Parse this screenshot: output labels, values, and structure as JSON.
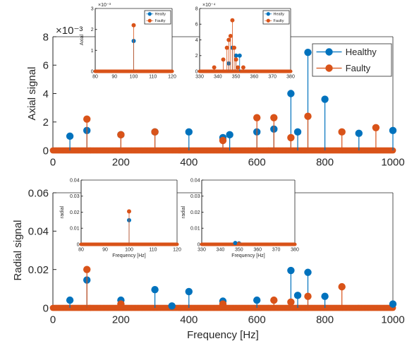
{
  "colors": {
    "healthy": "#0072BD",
    "faulty": "#D95319",
    "axis": "#262626"
  },
  "legend": {
    "entries": [
      {
        "name": "Healthy",
        "series": "healthy"
      },
      {
        "name": "Faulty",
        "series": "faulty"
      }
    ],
    "inset_entries": [
      {
        "name": "Healty",
        "series": "healthy"
      },
      {
        "name": "Faulty",
        "series": "faulty"
      }
    ]
  },
  "chart_data": [
    {
      "id": "axial-main",
      "type": "stem",
      "ylabel": "Axial signal",
      "xlabel": "",
      "exponent": "×10⁻³",
      "xlim": [
        0,
        1000
      ],
      "ylim": [
        0,
        0.008
      ],
      "xticks": [
        0,
        200,
        400,
        600,
        800,
        1000
      ],
      "xtick_labels": [
        "0",
        "200",
        "400",
        "600",
        "800",
        "1000"
      ],
      "yticks": [
        0,
        0.002,
        0.004,
        0.006,
        0.008
      ],
      "ytick_labels": [
        "0",
        "2",
        "4",
        "6",
        "8"
      ],
      "legend": "top-right",
      "series": [
        {
          "name": "Healthy",
          "key": "healthy",
          "x": [
            50,
            100,
            200,
            300,
            400,
            500,
            520,
            600,
            650,
            700,
            720,
            750,
            800,
            900,
            1000
          ],
          "y": [
            0.001,
            0.0014,
            0.0011,
            0.0013,
            0.0013,
            0.0009,
            0.0011,
            0.0013,
            0.0015,
            0.004,
            0.0013,
            0.0069,
            0.0036,
            0.0012,
            0.0014
          ]
        },
        {
          "name": "Faulty",
          "key": "faulty",
          "x": [
            100,
            200,
            300,
            500,
            600,
            650,
            700,
            750,
            850,
            950
          ],
          "y": [
            0.0022,
            0.0011,
            0.0013,
            0.0007,
            0.0023,
            0.0023,
            0.0009,
            0.0024,
            0.0013,
            0.0016
          ]
        }
      ]
    },
    {
      "id": "axial-inset-1",
      "type": "stem",
      "ylabel": "Axial",
      "xlabel": "",
      "exponent": "×10⁻³",
      "xlim": [
        80,
        120
      ],
      "ylim": [
        0,
        0.003
      ],
      "xticks": [
        80,
        90,
        100,
        110,
        120
      ],
      "xtick_labels": [
        "80",
        "90",
        "100",
        "110",
        "120"
      ],
      "yticks": [
        0,
        0.001,
        0.002,
        0.003
      ],
      "ytick_labels": [
        "0",
        "1",
        "2",
        "3"
      ],
      "legend": "top-right",
      "series": [
        {
          "name": "Healty",
          "key": "healthy",
          "x": [
            100
          ],
          "y": [
            0.00145
          ]
        },
        {
          "name": "Faulty",
          "key": "faulty",
          "x": [
            100
          ],
          "y": [
            0.0022
          ]
        }
      ]
    },
    {
      "id": "axial-inset-2",
      "type": "stem",
      "ylabel": "",
      "xlabel": "",
      "exponent": "×10⁻⁴",
      "xlim": [
        330,
        380
      ],
      "ylim": [
        0,
        0.0008
      ],
      "xticks": [
        330,
        340,
        350,
        360,
        370,
        380
      ],
      "xtick_labels": [
        "330",
        "340",
        "350",
        "360",
        "370",
        "380"
      ],
      "yticks": [
        0,
        0.0002,
        0.0004,
        0.0006,
        0.0008
      ],
      "ytick_labels": [
        "0",
        "2",
        "4",
        "6",
        "8"
      ],
      "legend": "top-right",
      "series": [
        {
          "name": "Healty",
          "key": "healthy",
          "x": [
            346,
            348,
            350,
            352
          ],
          "y": [
            0.0001,
            0.0003,
            0.0002,
            0.0002
          ]
        },
        {
          "name": "Faulty",
          "key": "faulty",
          "x": [
            338,
            343,
            345,
            346,
            347,
            348,
            349,
            350,
            351,
            354
          ],
          "y": [
            5e-05,
            0.00015,
            0.0003,
            0.0004,
            0.00045,
            0.00065,
            0.0003,
            0.00015,
            5e-05,
            5e-05
          ]
        }
      ]
    },
    {
      "id": "radial-main",
      "type": "stem",
      "ylabel": "Radial signal",
      "xlabel": "Frequency [Hz]",
      "exponent": "",
      "xlim": [
        0,
        1000
      ],
      "ylim": [
        0,
        0.06
      ],
      "xticks": [
        0,
        200,
        400,
        600,
        800,
        1000
      ],
      "xtick_labels": [
        "0",
        "200",
        "400",
        "600",
        "800",
        "1000"
      ],
      "yticks": [
        0,
        0.02,
        0.04,
        0.06
      ],
      "ytick_labels": [
        "0",
        "0.02",
        "0.04",
        "0.06"
      ],
      "legend": "none",
      "series": [
        {
          "name": "Healthy",
          "key": "healthy",
          "x": [
            50,
            100,
            200,
            300,
            350,
            400,
            500,
            600,
            700,
            720,
            750,
            800,
            1000
          ],
          "y": [
            0.004,
            0.0145,
            0.004,
            0.0095,
            0.001,
            0.0085,
            0.0035,
            0.004,
            0.0195,
            0.0065,
            0.0185,
            0.006,
            0.002
          ]
        },
        {
          "name": "Faulty",
          "key": "faulty",
          "x": [
            100,
            200,
            500,
            650,
            700,
            750,
            850
          ],
          "y": [
            0.02,
            0.002,
            0.002,
            0.004,
            0.003,
            0.006,
            0.011
          ]
        }
      ]
    },
    {
      "id": "radial-inset-1",
      "type": "stem",
      "ylabel": "radial",
      "xlabel": "Frequency [Hz]",
      "exponent": "",
      "xlim": [
        80,
        120
      ],
      "ylim": [
        0,
        0.04
      ],
      "xticks": [
        80,
        90,
        100,
        110,
        120
      ],
      "xtick_labels": [
        "80",
        "90",
        "100",
        "110",
        "120"
      ],
      "yticks": [
        0,
        0.01,
        0.02,
        0.03,
        0.04
      ],
      "ytick_labels": [
        "0",
        "0.01",
        "0.02",
        "0.03",
        "0.04"
      ],
      "legend": "none",
      "series": [
        {
          "name": "Healthy",
          "key": "healthy",
          "x": [
            100
          ],
          "y": [
            0.015
          ]
        },
        {
          "name": "Faulty",
          "key": "faulty",
          "x": [
            100
          ],
          "y": [
            0.0205
          ]
        }
      ]
    },
    {
      "id": "radial-inset-2",
      "type": "stem",
      "ylabel": "radial",
      "xlabel": "Frequency [Hz]",
      "exponent": "",
      "xlim": [
        330,
        380
      ],
      "ylim": [
        0,
        0.04
      ],
      "xticks": [
        330,
        340,
        350,
        360,
        370,
        380
      ],
      "xtick_labels": [
        "330",
        "340",
        "350",
        "360",
        "370",
        "380"
      ],
      "yticks": [
        0,
        0.01,
        0.02,
        0.03,
        0.04
      ],
      "ytick_labels": [
        "0",
        "0.01",
        "0.02",
        "0.03",
        "0.04"
      ],
      "legend": "none",
      "series": [
        {
          "name": "Healthy",
          "key": "healthy",
          "x": [
            348,
            350
          ],
          "y": [
            0.0008,
            0.0006
          ]
        },
        {
          "name": "Faulty",
          "key": "faulty",
          "x": [
            350
          ],
          "y": [
            0.0003
          ]
        }
      ]
    }
  ]
}
